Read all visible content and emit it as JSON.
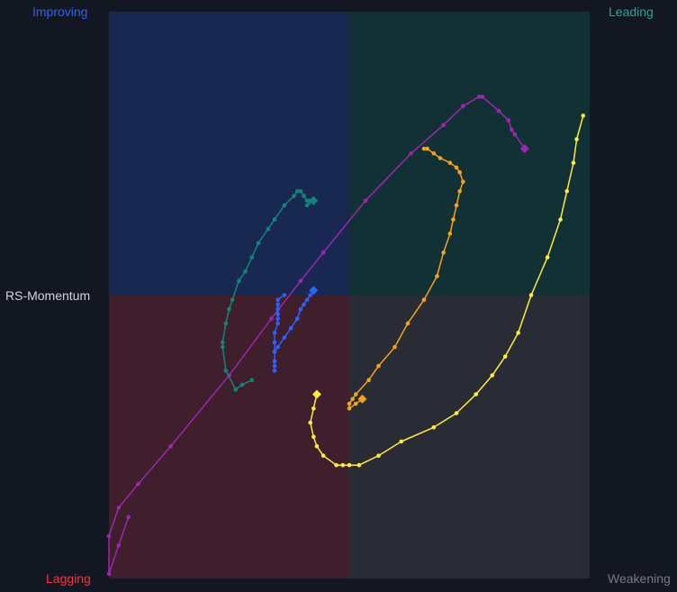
{
  "colors": {
    "background": "#131722",
    "improving": "#182850",
    "leading": "#123135",
    "lagging": "#3f1f2b",
    "weakening": "#292c35",
    "improving_text": "#2962ff",
    "leading_text": "#26a69a",
    "lagging_text": "#f23645",
    "weakening_text": "#787b86",
    "axis_text": "#d1d4dc"
  },
  "chart_data": {
    "type": "scatter",
    "subtype": "relative-rotation-graph",
    "title": "",
    "xlabel": "",
    "ylabel": "RS-Momentum",
    "quadrants": {
      "top_left": "Improving",
      "top_right": "Leading",
      "bottom_left": "Lagging",
      "bottom_right": "Weakening"
    },
    "xlim": [
      92.6,
      107.4
    ],
    "ylim": [
      94,
      106
    ],
    "center": [
      100,
      100
    ],
    "grid": false,
    "legend": "none",
    "series": [
      {
        "color": "#9c27b0",
        "points": [
          [
            93.2,
            95.3
          ],
          [
            92.9,
            94.7
          ],
          [
            92.6,
            94.1
          ],
          [
            92.6,
            94.9
          ],
          [
            92.9,
            95.5
          ],
          [
            93.5,
            96.0
          ],
          [
            94.5,
            96.8
          ],
          [
            96.3,
            98.3
          ],
          [
            97.6,
            99.5
          ],
          [
            98.5,
            100.3
          ],
          [
            99.2,
            100.9
          ],
          [
            100.5,
            102.0
          ],
          [
            101.9,
            103.0
          ],
          [
            102.9,
            103.6
          ],
          [
            103.5,
            104.0
          ],
          [
            104.0,
            104.2
          ],
          [
            104.1,
            104.2
          ],
          [
            104.6,
            103.9
          ],
          [
            104.9,
            103.7
          ],
          [
            105.0,
            103.5
          ],
          [
            105.1,
            103.4
          ],
          [
            105.4,
            103.1
          ]
        ]
      },
      {
        "color": "#10867a",
        "points": [
          [
            97.0,
            98.2
          ],
          [
            96.7,
            98.1
          ],
          [
            96.5,
            98.0
          ],
          [
            96.2,
            98.4
          ],
          [
            96.1,
            98.9
          ],
          [
            96.1,
            99.0
          ],
          [
            96.2,
            99.4
          ],
          [
            96.3,
            99.7
          ],
          [
            96.4,
            99.9
          ],
          [
            96.6,
            100.3
          ],
          [
            96.8,
            100.5
          ],
          [
            97.0,
            100.8
          ],
          [
            97.2,
            101.1
          ],
          [
            97.5,
            101.4
          ],
          [
            97.7,
            101.6
          ],
          [
            98.0,
            101.9
          ],
          [
            98.3,
            102.1
          ],
          [
            98.4,
            102.2
          ],
          [
            98.5,
            102.2
          ],
          [
            98.6,
            102.1
          ],
          [
            98.7,
            102.0
          ],
          [
            98.8,
            102.0
          ],
          [
            98.7,
            101.9
          ],
          [
            98.9,
            102.0
          ]
        ]
      },
      {
        "color": "#2962ff",
        "points": [
          [
            98.0,
            100.0
          ],
          [
            97.8,
            99.9
          ],
          [
            97.8,
            99.8
          ],
          [
            97.8,
            99.7
          ],
          [
            97.8,
            99.6
          ],
          [
            97.8,
            99.5
          ],
          [
            97.8,
            99.4
          ],
          [
            97.7,
            99.2
          ],
          [
            97.7,
            99.0
          ],
          [
            97.7,
            98.8
          ],
          [
            97.7,
            98.6
          ],
          [
            97.7,
            98.5
          ],
          [
            97.7,
            98.4
          ],
          [
            97.7,
            98.6
          ],
          [
            97.7,
            98.8
          ],
          [
            97.8,
            98.9
          ],
          [
            98.0,
            99.1
          ],
          [
            98.2,
            99.3
          ],
          [
            98.4,
            99.5
          ],
          [
            98.5,
            99.7
          ],
          [
            98.6,
            99.8
          ],
          [
            98.7,
            99.9
          ],
          [
            98.8,
            100.0
          ],
          [
            98.9,
            100.1
          ]
        ]
      },
      {
        "color": "#f7a21b",
        "points": [
          [
            102.3,
            103.1
          ],
          [
            102.4,
            103.1
          ],
          [
            102.6,
            103.0
          ],
          [
            102.8,
            102.9
          ],
          [
            103.1,
            102.8
          ],
          [
            103.3,
            102.7
          ],
          [
            103.4,
            102.6
          ],
          [
            103.5,
            102.4
          ],
          [
            103.4,
            102.2
          ],
          [
            103.3,
            101.9
          ],
          [
            103.2,
            101.6
          ],
          [
            103.1,
            101.3
          ],
          [
            102.9,
            100.9
          ],
          [
            102.7,
            100.4
          ],
          [
            102.3,
            99.9
          ],
          [
            101.8,
            99.4
          ],
          [
            101.4,
            98.9
          ],
          [
            100.9,
            98.5
          ],
          [
            100.6,
            98.2
          ],
          [
            100.2,
            97.9
          ],
          [
            100.1,
            97.8
          ],
          [
            100.0,
            97.7
          ],
          [
            100.0,
            97.6
          ],
          [
            100.2,
            97.7
          ],
          [
            100.4,
            97.8
          ]
        ]
      },
      {
        "color": "#ffeb3b",
        "points": [
          [
            107.2,
            103.8
          ],
          [
            107.0,
            103.3
          ],
          [
            106.9,
            102.8
          ],
          [
            106.7,
            102.2
          ],
          [
            106.5,
            101.6
          ],
          [
            106.1,
            100.8
          ],
          [
            105.6,
            100.0
          ],
          [
            105.2,
            99.2
          ],
          [
            104.8,
            98.7
          ],
          [
            104.4,
            98.3
          ],
          [
            103.9,
            97.9
          ],
          [
            103.3,
            97.5
          ],
          [
            102.6,
            97.2
          ],
          [
            101.6,
            96.9
          ],
          [
            100.9,
            96.6
          ],
          [
            100.3,
            96.4
          ],
          [
            100.0,
            96.4
          ],
          [
            99.8,
            96.4
          ],
          [
            99.6,
            96.4
          ],
          [
            99.2,
            96.6
          ],
          [
            99.0,
            96.8
          ],
          [
            98.9,
            97.0
          ],
          [
            98.8,
            97.3
          ],
          [
            98.9,
            97.6
          ],
          [
            99.0,
            97.9
          ]
        ]
      }
    ]
  }
}
